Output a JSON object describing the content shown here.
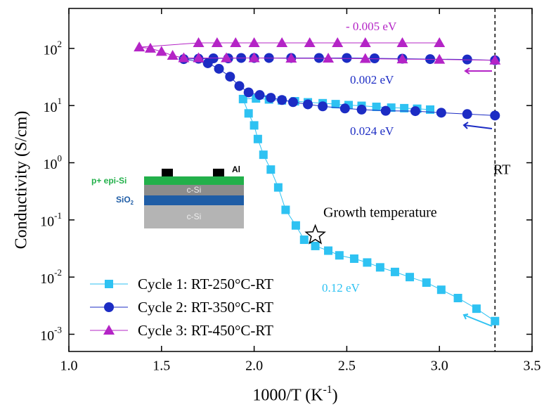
{
  "chart_data": {
    "type": "scatter",
    "x_label": "1000/T (K^-1)",
    "y_label": "Conductivity (S/cm)",
    "log_y": true,
    "xlim": [
      1.0,
      3.5
    ],
    "xticks": [
      {
        "value": 1.0,
        "label": "1.0"
      },
      1.5,
      {
        "value": 2.0,
        "label": "2.0"
      },
      2.5,
      {
        "value": 3.0,
        "label": "3.0"
      },
      3.5
    ],
    "ylim": [
      0.0005,
      500
    ],
    "yticks": [
      {
        "value": 0.001,
        "label": "10^-3"
      },
      {
        "value": 0.01,
        "label": "10^-2"
      },
      {
        "value": 0.1,
        "label": "10^-1"
      },
      {
        "value": 1,
        "label": "10^0"
      },
      {
        "value": 10,
        "label": "10^1"
      },
      {
        "value": 100,
        "label": "10^2"
      }
    ],
    "legend": "lower left",
    "rt_line_x": 3.3,
    "series": [
      {
        "name": "Cycle 1: RT-250°C-RT",
        "color": "#2ec2f2",
        "marker": "square",
        "x": [
          2.95,
          2.88,
          2.81,
          2.74,
          2.66,
          2.58,
          2.51,
          2.44,
          2.37,
          2.29,
          2.22,
          2.15,
          2.08,
          2.01,
          1.94,
          1.97,
          2.0,
          2.02,
          2.05,
          2.09,
          2.13,
          2.17,
          2.225,
          2.27,
          2.33,
          2.4,
          2.46,
          2.54,
          2.61,
          2.68,
          2.76,
          2.84,
          2.93,
          3.01,
          3.1,
          3.2,
          3.3
        ],
        "values": [
          8.5,
          8.8,
          9.0,
          9.2,
          9.5,
          9.9,
          10.2,
          10.6,
          11.0,
          11.4,
          11.9,
          12.3,
          12.8,
          13.3,
          13,
          7.3,
          4.5,
          2.6,
          1.38,
          0.76,
          0.37,
          0.15,
          0.08,
          0.045,
          0.035,
          0.029,
          0.024,
          0.021,
          0.018,
          0.0148,
          0.0123,
          0.01,
          0.008,
          0.006,
          0.0043,
          0.0028,
          0.0017
        ]
      },
      {
        "name": "Cycle 2: RT-350°C-RT",
        "color": "#1c2cc4",
        "marker": "circle",
        "x": [
          3.3,
          3.15,
          2.95,
          2.8,
          2.65,
          2.5,
          2.35,
          2.2,
          2.08,
          2.0,
          1.93,
          1.86,
          1.78,
          1.7,
          1.62,
          1.75,
          1.81,
          1.87,
          1.92,
          1.97,
          2.03,
          2.09,
          2.15,
          2.21,
          2.29,
          2.37,
          2.49,
          2.58,
          2.71,
          2.87,
          3.01,
          3.15,
          3.3
        ],
        "values": [
          62,
          64,
          65,
          66,
          67,
          68,
          68,
          68,
          68,
          68,
          68,
          67,
          67,
          66,
          65,
          55,
          44,
          32,
          22,
          17,
          15.3,
          13.7,
          12.5,
          11.5,
          10.5,
          9.7,
          8.9,
          8.5,
          8.1,
          8,
          7.5,
          7.1,
          6.7
        ]
      },
      {
        "name": "Cycle 3: RT-450°C-RT",
        "color": "#b424c6",
        "marker": "triangle",
        "x": [
          3.0,
          2.8,
          2.6,
          2.45,
          2.3,
          2.15,
          2.0,
          1.9,
          1.8,
          1.7,
          1.38,
          1.44,
          1.5,
          1.56,
          1.62,
          1.7,
          1.85,
          2.0,
          2.2,
          2.4,
          2.6,
          2.8,
          3.0,
          3.3
        ],
        "values": [
          125,
          125,
          125,
          125,
          125,
          125,
          125,
          125,
          125,
          125,
          105,
          100,
          88,
          75,
          68,
          68,
          68,
          68,
          67,
          67,
          66,
          65,
          64,
          62
        ]
      }
    ],
    "annotations": [
      "- 0.005 eV",
      "0.002 eV",
      "0.024 eV",
      "0.12 eV",
      "Growth temperature",
      "RT"
    ],
    "star": {
      "x": 2.33,
      "y": 0.054
    },
    "inset": {
      "contact": "Al",
      "top_layer": "p+ epi-Si",
      "layer2": "c-Si",
      "oxide": "SiO^2",
      "substrate": "c-Si"
    }
  }
}
